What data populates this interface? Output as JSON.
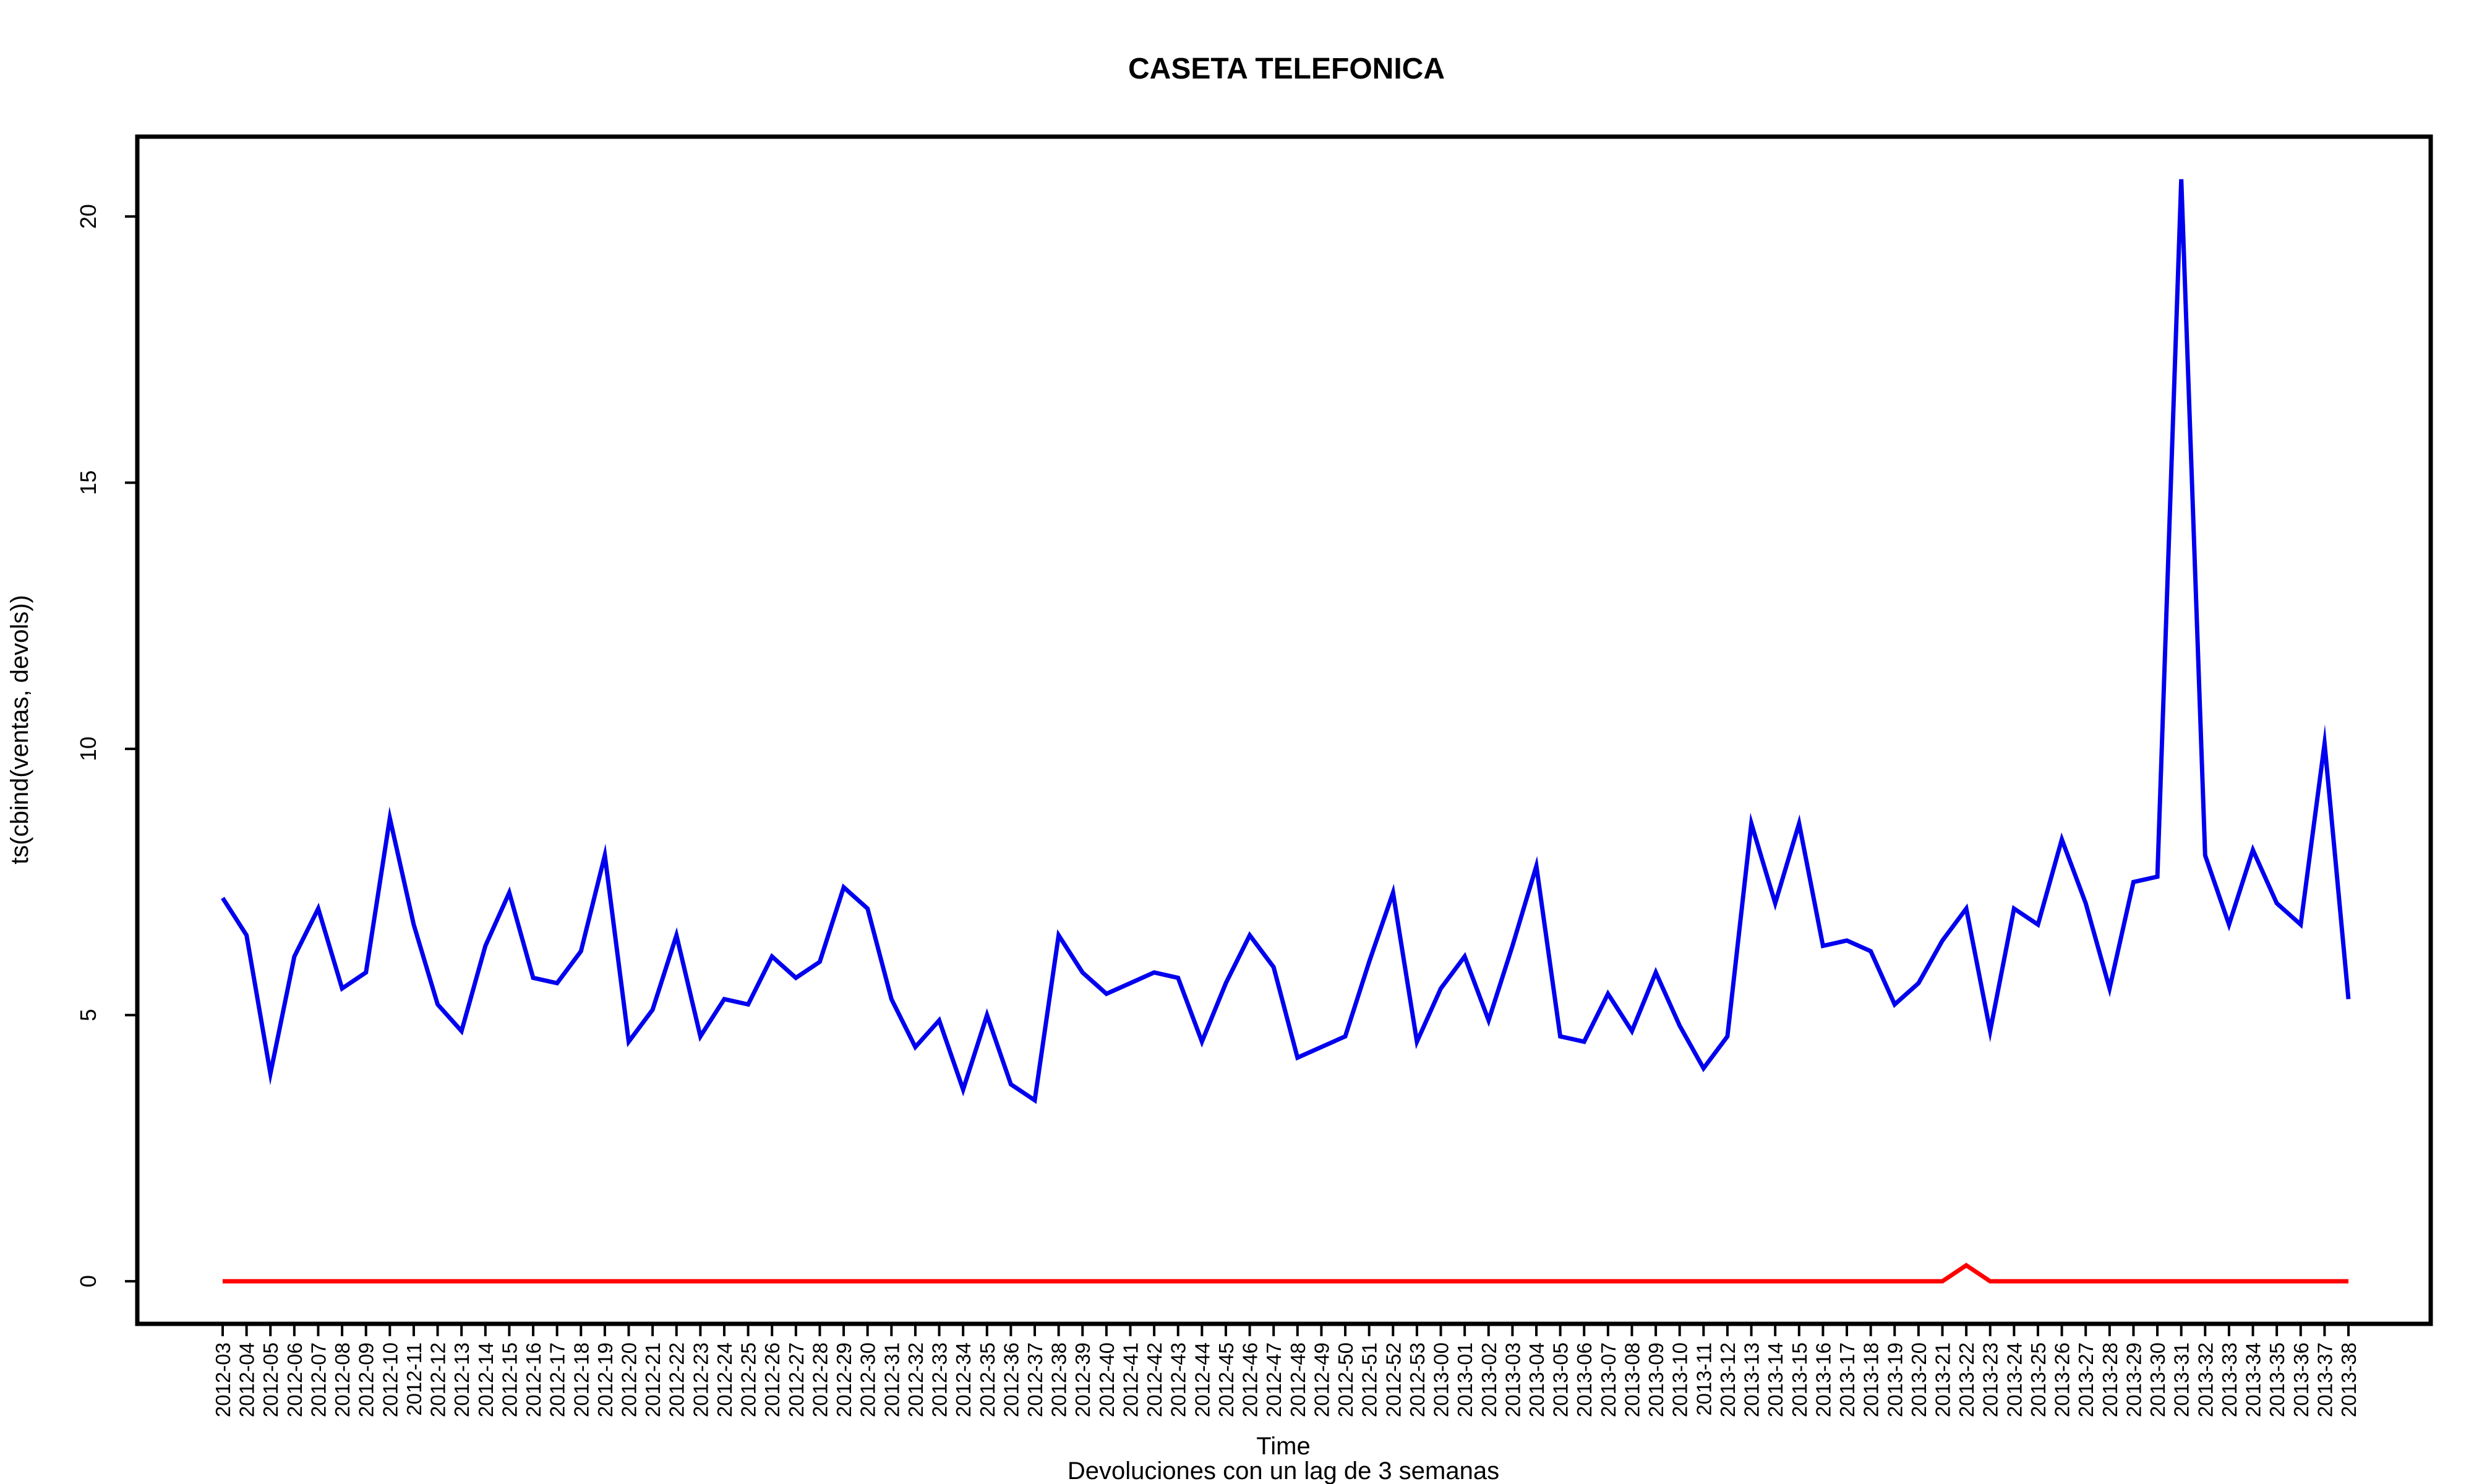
{
  "chart_data": {
    "type": "line",
    "title": "CASETA TELEFONICA",
    "xlabel": "Time",
    "subtitle": "Devoluciones con un lag de 3 semanas",
    "ylabel": "ts(cbind(ventas, devols))",
    "ylim": [
      -0.8,
      21.5
    ],
    "yticks": [
      0,
      5,
      10,
      15,
      20
    ],
    "legend": "none",
    "grid": false,
    "categories": [
      "2012-03",
      "2012-04",
      "2012-05",
      "2012-06",
      "2012-07",
      "2012-08",
      "2012-09",
      "2012-10",
      "2012-11",
      "2012-12",
      "2012-13",
      "2012-14",
      "2012-15",
      "2012-16",
      "2012-17",
      "2012-18",
      "2012-19",
      "2012-20",
      "2012-21",
      "2012-22",
      "2012-23",
      "2012-24",
      "2012-25",
      "2012-26",
      "2012-27",
      "2012-28",
      "2012-29",
      "2012-30",
      "2012-31",
      "2012-32",
      "2012-33",
      "2012-34",
      "2012-35",
      "2012-36",
      "2012-37",
      "2012-38",
      "2012-39",
      "2012-40",
      "2012-41",
      "2012-42",
      "2012-43",
      "2012-44",
      "2012-45",
      "2012-46",
      "2012-47",
      "2012-48",
      "2012-49",
      "2012-50",
      "2012-51",
      "2012-52",
      "2012-53",
      "2013-00",
      "2013-01",
      "2013-02",
      "2013-03",
      "2013-04",
      "2013-05",
      "2013-06",
      "2013-07",
      "2013-08",
      "2013-09",
      "2013-10",
      "2013-11",
      "2013-12",
      "2013-13",
      "2013-14",
      "2013-15",
      "2013-16",
      "2013-17",
      "2013-18",
      "2013-19",
      "2013-20",
      "2013-21",
      "2013-22",
      "2013-23",
      "2013-24",
      "2013-25",
      "2013-26",
      "2013-27",
      "2013-28",
      "2013-29",
      "2013-30",
      "2013-31",
      "2013-32",
      "2013-33",
      "2013-34",
      "2013-35",
      "2013-36",
      "2013-37",
      "2013-38"
    ],
    "series": [
      {
        "color": "#0000ee",
        "values": [
          7.2,
          6.5,
          3.9,
          6.1,
          7.0,
          5.5,
          5.8,
          8.7,
          6.7,
          5.2,
          4.7,
          6.3,
          7.3,
          5.7,
          5.6,
          6.2,
          8.0,
          4.5,
          5.1,
          6.5,
          4.6,
          5.3,
          5.2,
          6.1,
          5.7,
          6.0,
          7.4,
          7.0,
          5.3,
          4.4,
          4.9,
          3.6,
          5.0,
          3.7,
          3.4,
          6.5,
          5.8,
          5.4,
          5.6,
          5.8,
          5.7,
          4.5,
          5.6,
          6.5,
          5.9,
          4.2,
          4.4,
          4.6,
          6.0,
          7.3,
          4.5,
          5.5,
          6.1,
          4.9,
          6.3,
          7.8,
          4.6,
          4.5,
          5.4,
          4.7,
          5.8,
          4.8,
          4.0,
          4.6,
          8.6,
          7.1,
          8.6,
          6.3,
          6.4,
          6.2,
          5.2,
          5.6,
          6.4,
          7.0,
          4.7,
          7.0,
          6.7,
          8.3,
          7.1,
          5.5,
          7.5,
          7.6,
          20.7,
          8.0,
          6.7,
          8.1,
          7.1,
          6.7,
          10.1,
          5.3
        ]
      },
      {
        "color": "#ff0000",
        "values": [
          0,
          0,
          0,
          0,
          0,
          0,
          0,
          0,
          0,
          0,
          0,
          0,
          0,
          0,
          0,
          0,
          0,
          0,
          0,
          0,
          0,
          0,
          0,
          0,
          0,
          0,
          0,
          0,
          0,
          0,
          0,
          0,
          0,
          0,
          0,
          0,
          0,
          0,
          0,
          0,
          0,
          0,
          0,
          0,
          0,
          0,
          0,
          0,
          0,
          0,
          0,
          0,
          0,
          0,
          0,
          0,
          0,
          0,
          0,
          0,
          0,
          0,
          0,
          0,
          0,
          0,
          0,
          0,
          0,
          0,
          0,
          0,
          0,
          0.3,
          0,
          0,
          0,
          0,
          0,
          0,
          0,
          0,
          0,
          0,
          0,
          0,
          0,
          0,
          0,
          0
        ]
      }
    ]
  }
}
